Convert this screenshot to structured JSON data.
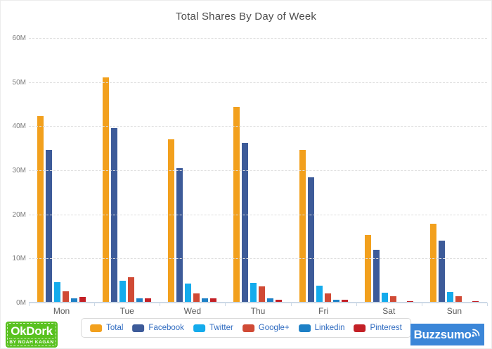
{
  "title": "Total Shares By Day of Week",
  "chart_data": {
    "type": "bar",
    "categories": [
      "Mon",
      "Tue",
      "Wed",
      "Thu",
      "Fri",
      "Sat",
      "Sun"
    ],
    "series": [
      {
        "name": "Total",
        "color": "#F2A01D",
        "values": [
          42.3,
          51.0,
          37.0,
          44.4,
          34.6,
          15.3,
          17.8
        ]
      },
      {
        "name": "Facebook",
        "color": "#3D5B99",
        "values": [
          34.6,
          39.5,
          30.5,
          36.2,
          28.4,
          11.9,
          14.0
        ]
      },
      {
        "name": "Twitter",
        "color": "#14ABEC",
        "values": [
          4.6,
          5.0,
          4.3,
          4.4,
          3.9,
          2.2,
          2.4
        ]
      },
      {
        "name": "Google+",
        "color": "#D04A35",
        "values": [
          2.6,
          5.8,
          2.1,
          3.7,
          2.1,
          1.5,
          1.5
        ]
      },
      {
        "name": "Linkedin",
        "color": "#1D80C6",
        "values": [
          1.0,
          1.0,
          0.9,
          0.9,
          0.7,
          0.1,
          0.1
        ]
      },
      {
        "name": "Pinterest",
        "color": "#C32026",
        "values": [
          1.3,
          1.0,
          0.9,
          0.7,
          0.7,
          0.4,
          0.4
        ]
      }
    ],
    "ylim": [
      0,
      60
    ],
    "ytick_labels": [
      "0M",
      "10M",
      "20M",
      "30M",
      "40M",
      "50M",
      "60M"
    ],
    "grid": "horizontal-dashed",
    "legend_position": "bottom-center",
    "legend_text_color": "#2F6BC0"
  },
  "footer": {
    "okdork": {
      "title": "OkDork",
      "subtitle": "BY NOAH KAGAN",
      "bg_color": "#58C11F"
    },
    "buzzsumo": {
      "label": "Buzzsumo",
      "bg_color": "#3B86D8"
    }
  }
}
